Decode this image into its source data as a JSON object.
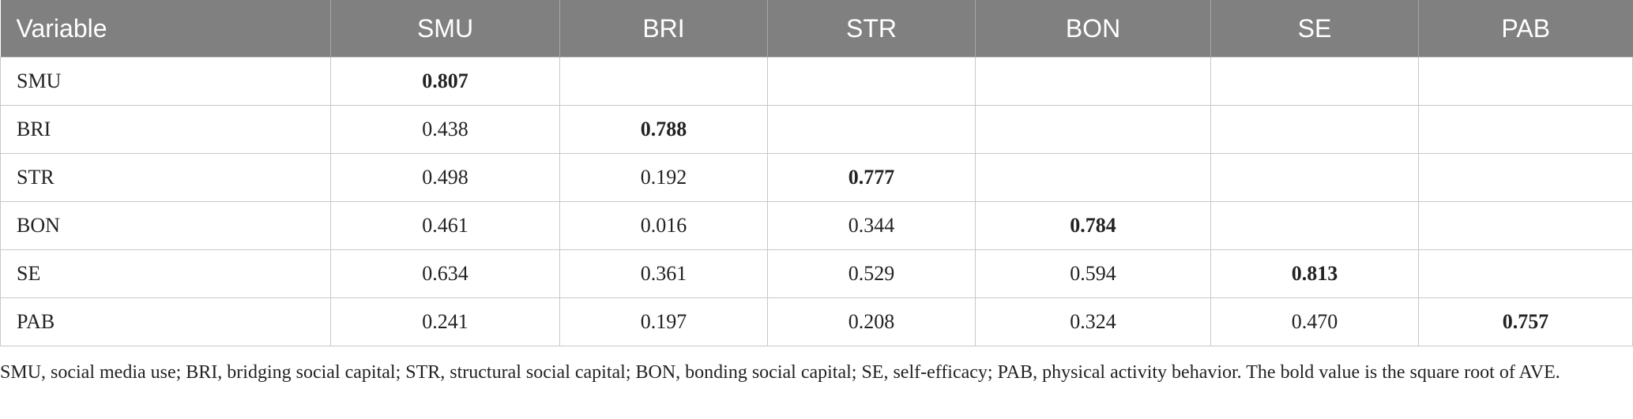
{
  "table": {
    "columns": [
      "Variable",
      "SMU",
      "BRI",
      "STR",
      "BON",
      "SE",
      "PAB"
    ],
    "rows": [
      {
        "variable": "SMU",
        "cells": [
          "0.807",
          "",
          "",
          "",
          "",
          ""
        ],
        "bold_index": 0
      },
      {
        "variable": "BRI",
        "cells": [
          "0.438",
          "0.788",
          "",
          "",
          "",
          ""
        ],
        "bold_index": 1
      },
      {
        "variable": "STR",
        "cells": [
          "0.498",
          "0.192",
          "0.777",
          "",
          "",
          ""
        ],
        "bold_index": 2
      },
      {
        "variable": "BON",
        "cells": [
          "0.461",
          "0.016",
          "0.344",
          "0.784",
          "",
          ""
        ],
        "bold_index": 3
      },
      {
        "variable": "SE",
        "cells": [
          "0.634",
          "0.361",
          "0.529",
          "0.594",
          "0.813",
          ""
        ],
        "bold_index": 4
      },
      {
        "variable": "PAB",
        "cells": [
          "0.241",
          "0.197",
          "0.208",
          "0.324",
          "0.470",
          "0.757"
        ],
        "bold_index": 5
      }
    ]
  },
  "footnote": "SMU, social media use; BRI, bridging social capital; STR, structural social capital; BON, bonding social capital; SE, self-efficacy; PAB, physical activity behavior. The bold value is the square root of AVE.",
  "colors": {
    "header_bg": "#808080",
    "header_text": "#ffffff",
    "grid": "#c8c8c8",
    "text": "#222222"
  }
}
